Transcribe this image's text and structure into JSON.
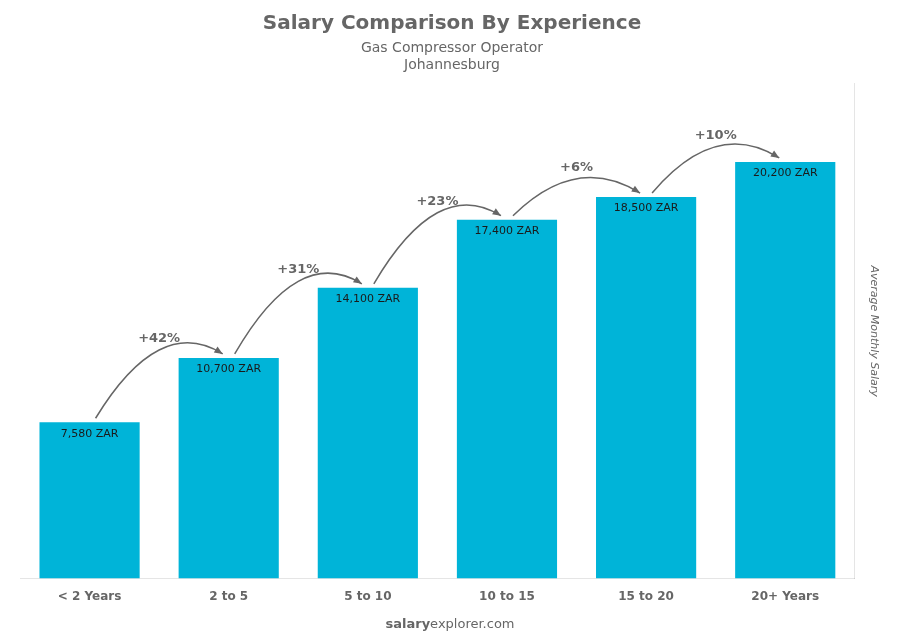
{
  "chart_data": {
    "type": "bar",
    "title": "Salary Comparison By Experience",
    "subtitle": [
      "Gas Compressor Operator",
      "Johannesburg"
    ],
    "ylabel": "Average Monthly Salary",
    "categories": [
      "< 2 Years",
      "2 to 5",
      "5 to 10",
      "10 to 15",
      "15 to 20",
      "20+ Years"
    ],
    "values": [
      7580,
      10700,
      14100,
      17400,
      18500,
      20200
    ],
    "value_labels": [
      "7,580 ZAR",
      "10,700 ZAR",
      "14,100 ZAR",
      "17,400 ZAR",
      "18,500 ZAR",
      "20,200 ZAR"
    ],
    "data_labels": true,
    "annotations": [
      "+42%",
      "+31%",
      "+23%",
      "+6%",
      "+10%"
    ],
    "footer": [
      "salary",
      "explorer.com"
    ],
    "color": "#00b4d8",
    "ylim": [
      0,
      24000
    ],
    "tick_labels": "x",
    "grid": false,
    "legend": false
  }
}
